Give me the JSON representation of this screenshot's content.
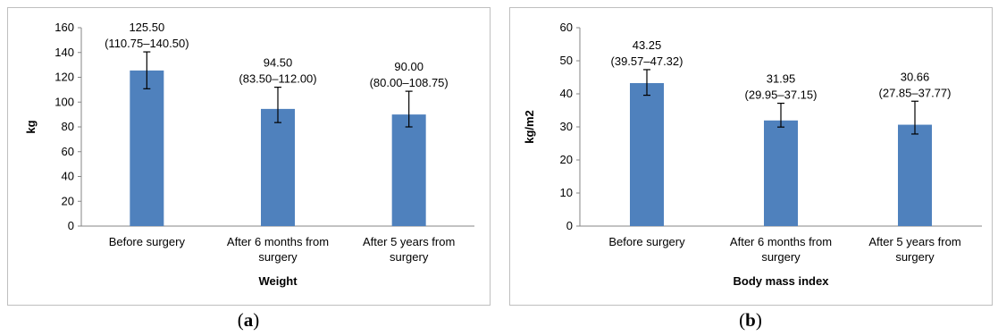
{
  "captions": {
    "a": {
      "open": "(",
      "letter": "a",
      "close": ")"
    },
    "b": {
      "open": "(",
      "letter": "b",
      "close": ")"
    }
  },
  "colors": {
    "bar": "#4f81bd",
    "axis": "#868686",
    "border": "#bfbfbf"
  },
  "chart_data": [
    {
      "type": "bar",
      "title": "",
      "xlabel": "Weight",
      "ylabel": "kg",
      "ylim": [
        0,
        160
      ],
      "yticks": [
        0,
        20,
        40,
        60,
        80,
        100,
        120,
        140,
        160
      ],
      "grid": false,
      "categories": [
        "Before surgery",
        "After 6 months from surgery",
        "After 5 years from surgery"
      ],
      "series": [
        {
          "values": [
            125.5,
            94.5,
            90.0
          ],
          "error_low": [
            110.75,
            83.5,
            80.0
          ],
          "error_high": [
            140.5,
            112.0,
            108.75
          ],
          "labels": [
            [
              "125.50",
              "(110.75–140.50)"
            ],
            [
              "94.50",
              "(83.50–112.00)"
            ],
            [
              "90.00",
              "(80.00–108.75)"
            ]
          ]
        }
      ]
    },
    {
      "type": "bar",
      "title": "",
      "xlabel": "Body mass index",
      "ylabel": "kg/m2",
      "ylim": [
        0,
        60
      ],
      "yticks": [
        0,
        10,
        20,
        30,
        40,
        50,
        60
      ],
      "grid": false,
      "categories": [
        "Before surgery",
        "After 6 months from surgery",
        "After 5 years from surgery"
      ],
      "series": [
        {
          "values": [
            43.25,
            31.95,
            30.66
          ],
          "error_low": [
            39.57,
            29.95,
            27.85
          ],
          "error_high": [
            47.32,
            37.15,
            37.77
          ],
          "labels": [
            [
              "43.25",
              "(39.57–47.32)"
            ],
            [
              "31.95",
              "(29.95–37.15)"
            ],
            [
              "30.66",
              "(27.85–37.77)"
            ]
          ]
        }
      ]
    }
  ]
}
